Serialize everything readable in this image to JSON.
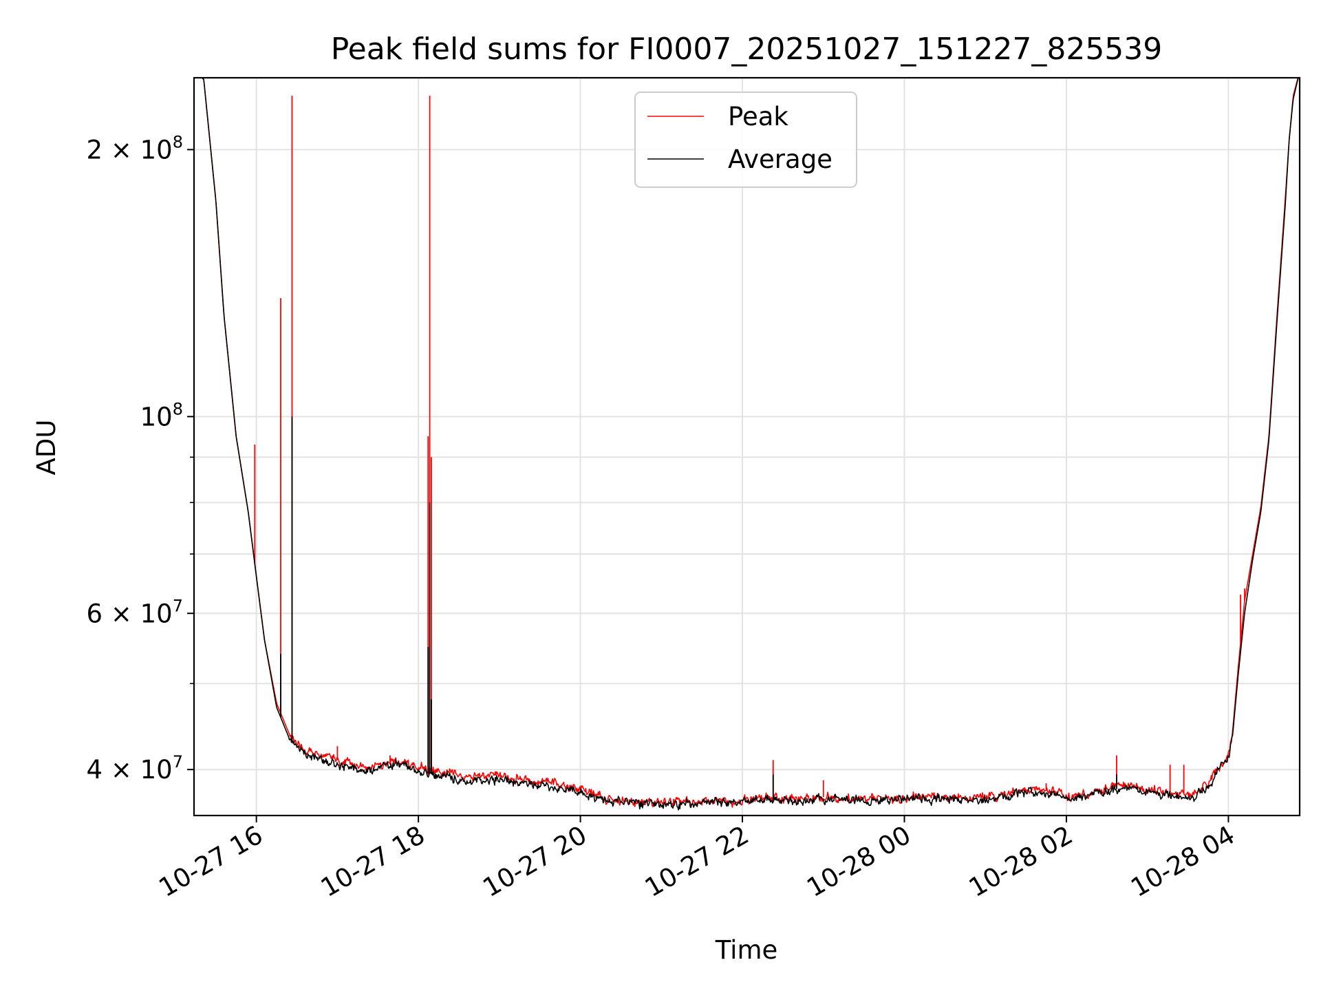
{
  "chart_data": {
    "type": "line",
    "title": "Peak field sums for FI0007_20251027_151227_825539",
    "xlabel": "Time",
    "ylabel": "ADU",
    "yscale": "log",
    "grid": true,
    "legend_position": "top-center",
    "xlim_hours": [
      15.23,
      28.88
    ],
    "ylim": [
      35500000,
      241000000
    ],
    "x_ticks": [
      {
        "hours": 16,
        "label": "10-27 16"
      },
      {
        "hours": 18,
        "label": "10-27 18"
      },
      {
        "hours": 20,
        "label": "10-27 20"
      },
      {
        "hours": 22,
        "label": "10-27 22"
      },
      {
        "hours": 24,
        "label": "10-28 00"
      },
      {
        "hours": 26,
        "label": "10-28 02"
      },
      {
        "hours": 28,
        "label": "10-28 04"
      }
    ],
    "y_major_ticks": [
      {
        "value": 200000000,
        "mantissa": "2",
        "times": "×",
        "base": "10",
        "exp": "8"
      },
      {
        "value": 100000000,
        "mantissa": "",
        "times": "",
        "base": "10",
        "exp": "8"
      },
      {
        "value": 60000000,
        "mantissa": "6",
        "times": "×",
        "base": "10",
        "exp": "7"
      },
      {
        "value": 40000000,
        "mantissa": "4",
        "times": "×",
        "base": "10",
        "exp": "7"
      }
    ],
    "y_minor_ticks": [
      90000000,
      80000000,
      70000000,
      50000000
    ],
    "series": [
      {
        "name": "Peak",
        "color": "#ff0000",
        "baseline_hours": [
          15.23,
          15.35,
          15.5,
          15.6,
          15.75,
          15.9,
          16.0,
          16.1,
          16.25,
          16.4,
          16.6,
          16.8,
          17.0,
          17.3,
          17.7,
          18.0,
          18.3,
          18.6,
          19.0,
          19.5,
          19.9,
          20.3,
          20.7,
          21.1,
          21.5,
          21.9,
          22.3,
          22.7,
          23.1,
          23.5,
          23.9,
          24.3,
          24.7,
          25.1,
          25.5,
          25.8,
          26.0,
          26.2,
          26.4,
          26.6,
          26.8,
          27.0,
          27.2,
          27.4,
          27.6,
          27.8,
          27.9,
          28.0,
          28.05,
          28.12,
          28.2,
          28.3,
          28.4,
          28.5,
          28.6,
          28.7,
          28.75,
          28.8,
          28.88
        ],
        "baseline_values": [
          245000000,
          240000000,
          175000000,
          130000000,
          95000000,
          78000000,
          66000000,
          56000000,
          47500000,
          44000000,
          42000000,
          41500000,
          41000000,
          40200000,
          40900000,
          40200000,
          39700000,
          39200000,
          39400000,
          38800000,
          38200000,
          37100000,
          36700000,
          36700000,
          36800000,
          36900000,
          37200000,
          37000000,
          37300000,
          37000000,
          37200000,
          37300000,
          37200000,
          37300000,
          37800000,
          38000000,
          37300000,
          37400000,
          37800000,
          38200000,
          38400000,
          37900000,
          37700000,
          37500000,
          37500000,
          39000000,
          40500000,
          41500000,
          44000000,
          52000000,
          62000000,
          70000000,
          79000000,
          95000000,
          130000000,
          175000000,
          205000000,
          230000000,
          245000000
        ],
        "spikes": [
          {
            "hours": 15.98,
            "value": 93000000
          },
          {
            "hours": 16.3,
            "value": 136000000
          },
          {
            "hours": 16.44,
            "value": 230000000
          },
          {
            "hours": 18.12,
            "value": 95000000
          },
          {
            "hours": 18.14,
            "value": 230000000
          },
          {
            "hours": 18.16,
            "value": 90000000
          },
          {
            "hours": 17.0,
            "value": 42500000
          },
          {
            "hours": 17.65,
            "value": 41500000
          },
          {
            "hours": 22.38,
            "value": 41000000
          },
          {
            "hours": 23.0,
            "value": 38900000
          },
          {
            "hours": 25.75,
            "value": 38600000
          },
          {
            "hours": 26.62,
            "value": 41500000
          },
          {
            "hours": 27.28,
            "value": 40500000
          },
          {
            "hours": 27.45,
            "value": 40500000
          },
          {
            "hours": 28.15,
            "value": 63000000
          },
          {
            "hours": 28.2,
            "value": 64000000
          }
        ]
      },
      {
        "name": "Average",
        "color": "#000000",
        "baseline_hours": [
          15.23,
          15.35,
          15.5,
          15.6,
          15.75,
          15.9,
          16.0,
          16.1,
          16.25,
          16.4,
          16.6,
          16.8,
          17.0,
          17.3,
          17.7,
          18.0,
          18.3,
          18.6,
          19.0,
          19.5,
          19.9,
          20.3,
          20.7,
          21.1,
          21.5,
          21.9,
          22.3,
          22.7,
          23.1,
          23.5,
          23.9,
          24.3,
          24.7,
          25.1,
          25.5,
          25.8,
          26.0,
          26.2,
          26.4,
          26.6,
          26.8,
          27.0,
          27.2,
          27.4,
          27.6,
          27.8,
          27.9,
          28.0,
          28.05,
          28.12,
          28.2,
          28.3,
          28.4,
          28.5,
          28.6,
          28.7,
          28.75,
          28.8,
          28.88
        ],
        "baseline_values": [
          245000000,
          240000000,
          175000000,
          130000000,
          95000000,
          78000000,
          66000000,
          56000000,
          47000000,
          43500000,
          41500000,
          41000000,
          40500000,
          39800000,
          40500000,
          39800000,
          39300000,
          38800000,
          39000000,
          38400000,
          37900000,
          36900000,
          36600000,
          36600000,
          36700000,
          36800000,
          37000000,
          36800000,
          37100000,
          36800000,
          37000000,
          37100000,
          37000000,
          37100000,
          37600000,
          37800000,
          37100000,
          37200000,
          37600000,
          38000000,
          38200000,
          37700000,
          37500000,
          37300000,
          37300000,
          38800000,
          40300000,
          41200000,
          43500000,
          51000000,
          60000000,
          69000000,
          78000000,
          94000000,
          128000000,
          172000000,
          205000000,
          228000000,
          245000000
        ],
        "spikes": [
          {
            "hours": 16.3,
            "value": 54000000
          },
          {
            "hours": 16.44,
            "value": 100000000
          },
          {
            "hours": 18.12,
            "value": 55000000
          },
          {
            "hours": 18.14,
            "value": 80000000
          },
          {
            "hours": 18.16,
            "value": 48000000
          },
          {
            "hours": 22.38,
            "value": 39500000
          },
          {
            "hours": 26.62,
            "value": 39500000
          }
        ]
      }
    ]
  }
}
